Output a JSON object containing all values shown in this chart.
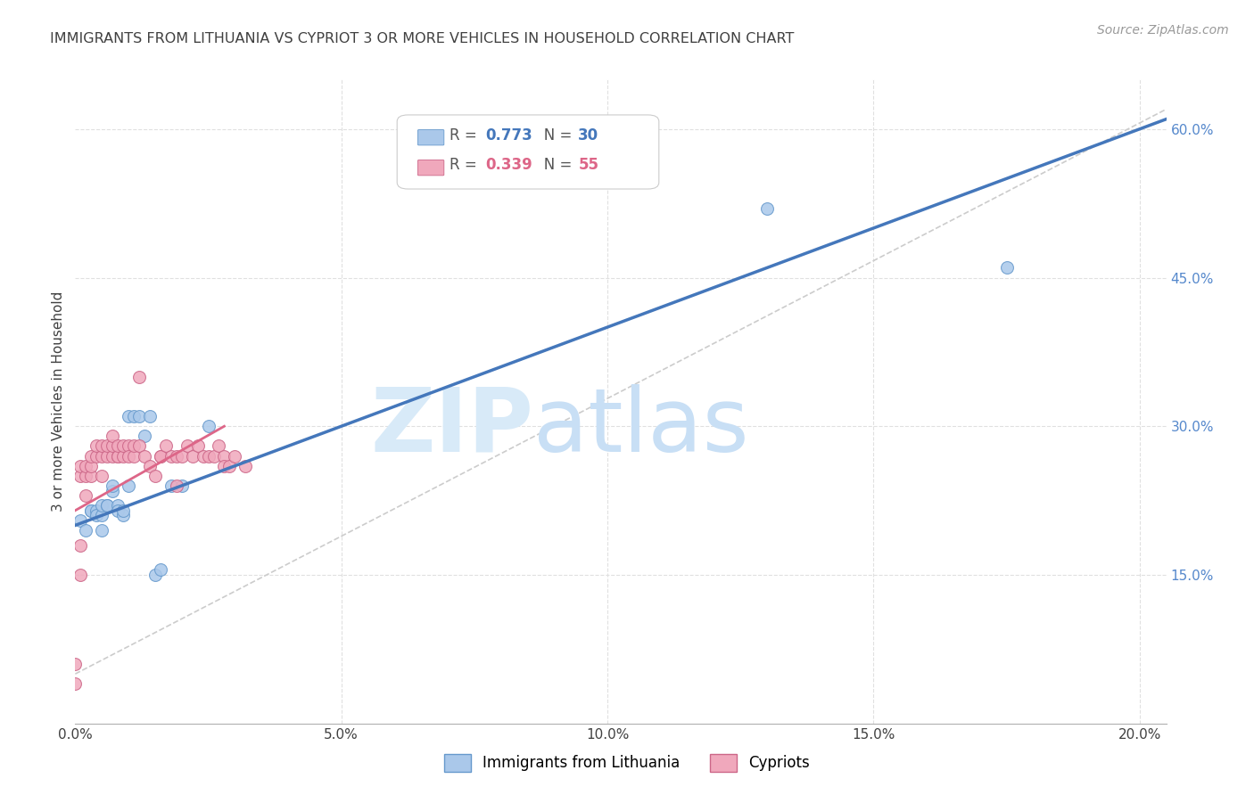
{
  "title": "IMMIGRANTS FROM LITHUANIA VS CYPRIOT 3 OR MORE VEHICLES IN HOUSEHOLD CORRELATION CHART",
  "source": "Source: ZipAtlas.com",
  "ylabel": "3 or more Vehicles in Household",
  "x_label_pct": [
    "0.0%",
    "5.0%",
    "10.0%",
    "15.0%",
    "20.0%"
  ],
  "x_ticks": [
    0.0,
    0.05,
    0.1,
    0.15,
    0.2
  ],
  "y_ticks_right": [
    0.15,
    0.3,
    0.45,
    0.6
  ],
  "y_tick_labels_right": [
    "15.0%",
    "30.0%",
    "45.0%",
    "60.0%"
  ],
  "xlim": [
    0.0,
    0.205
  ],
  "ylim": [
    0.0,
    0.65
  ],
  "legend_r1": "0.773",
  "legend_n1": "30",
  "legend_r2": "0.339",
  "legend_n2": "55",
  "watermark_zip": "ZIP",
  "watermark_atlas": "atlas",
  "blue_scatter_x": [
    0.001,
    0.002,
    0.003,
    0.003,
    0.004,
    0.004,
    0.005,
    0.005,
    0.005,
    0.006,
    0.006,
    0.007,
    0.007,
    0.008,
    0.008,
    0.009,
    0.009,
    0.01,
    0.01,
    0.011,
    0.012,
    0.013,
    0.014,
    0.015,
    0.016,
    0.018,
    0.02,
    0.025,
    0.13,
    0.175
  ],
  "blue_scatter_y": [
    0.205,
    0.195,
    0.215,
    0.215,
    0.215,
    0.21,
    0.21,
    0.22,
    0.195,
    0.22,
    0.22,
    0.235,
    0.24,
    0.22,
    0.215,
    0.21,
    0.215,
    0.24,
    0.31,
    0.31,
    0.31,
    0.29,
    0.31,
    0.15,
    0.155,
    0.24,
    0.24,
    0.3,
    0.52,
    0.46
  ],
  "pink_scatter_x": [
    0.0,
    0.0,
    0.001,
    0.001,
    0.001,
    0.001,
    0.002,
    0.002,
    0.002,
    0.003,
    0.003,
    0.003,
    0.004,
    0.004,
    0.005,
    0.005,
    0.005,
    0.006,
    0.006,
    0.007,
    0.007,
    0.007,
    0.008,
    0.008,
    0.008,
    0.009,
    0.009,
    0.01,
    0.01,
    0.011,
    0.011,
    0.012,
    0.012,
    0.013,
    0.014,
    0.015,
    0.016,
    0.016,
    0.017,
    0.018,
    0.019,
    0.019,
    0.02,
    0.021,
    0.022,
    0.023,
    0.024,
    0.025,
    0.026,
    0.027,
    0.028,
    0.028,
    0.029,
    0.03,
    0.032
  ],
  "pink_scatter_y": [
    0.06,
    0.04,
    0.15,
    0.18,
    0.25,
    0.26,
    0.23,
    0.25,
    0.26,
    0.25,
    0.26,
    0.27,
    0.27,
    0.28,
    0.25,
    0.27,
    0.28,
    0.27,
    0.28,
    0.27,
    0.28,
    0.29,
    0.27,
    0.27,
    0.28,
    0.27,
    0.28,
    0.28,
    0.27,
    0.27,
    0.28,
    0.28,
    0.35,
    0.27,
    0.26,
    0.25,
    0.27,
    0.27,
    0.28,
    0.27,
    0.24,
    0.27,
    0.27,
    0.28,
    0.27,
    0.28,
    0.27,
    0.27,
    0.27,
    0.28,
    0.27,
    0.26,
    0.26,
    0.27,
    0.26
  ],
  "blue_line_x0": 0.0,
  "blue_line_y0": 0.2,
  "blue_line_x1": 0.205,
  "blue_line_y1": 0.61,
  "pink_line_x0": 0.0,
  "pink_line_y0": 0.215,
  "pink_line_x1": 0.028,
  "pink_line_y1": 0.3,
  "ref_line_x0": 0.0,
  "ref_line_y0": 0.05,
  "ref_line_x1": 0.205,
  "ref_line_y1": 0.62,
  "blue_color": "#aac8ea",
  "blue_edge": "#6699cc",
  "pink_color": "#f0a8bc",
  "pink_edge": "#cc6688",
  "blue_line_color": "#4477bb",
  "pink_line_color": "#dd6688",
  "ref_line_color": "#cccccc",
  "grid_color": "#e0e0e0",
  "title_color": "#404040",
  "right_axis_color": "#5588cc",
  "watermark_color": "#d8eaf8",
  "scatter_size": 100
}
